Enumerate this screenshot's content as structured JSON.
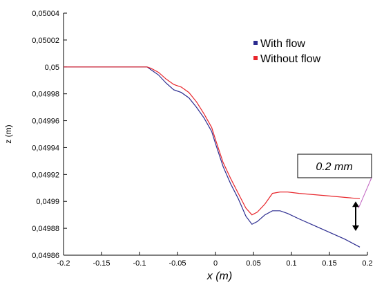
{
  "chart_data": {
    "type": "line",
    "title": "",
    "xlabel": "x (m)",
    "ylabel": "z (m)",
    "xlim": [
      -0.2,
      0.2
    ],
    "ylim": [
      0.04986,
      0.05004
    ],
    "x_ticks": [
      -0.2,
      -0.15,
      -0.1,
      -0.05,
      0,
      0.05,
      0.1,
      0.15,
      0.2
    ],
    "x_tick_labels": [
      "-0.2",
      "-0.15",
      "-0.1",
      "-0.05",
      "0",
      "0.05",
      "0.1",
      "0.15",
      "0.2"
    ],
    "y_ticks": [
      0.04986,
      0.04988,
      0.0499,
      0.04992,
      0.04994,
      0.04996,
      0.04998,
      0.05,
      0.05002,
      0.05004
    ],
    "y_tick_labels": [
      "0,04986",
      "0,04988",
      "0,0499",
      "0,04992",
      "0,04994",
      "0,04996",
      "0,04998",
      "0,05",
      "0,05002",
      "0,05004"
    ],
    "grid": false,
    "legend": "top-right",
    "series": [
      {
        "name": "With flow",
        "color": "#2b2b8f",
        "x": [
          -0.2,
          -0.09,
          -0.085,
          -0.075,
          -0.065,
          -0.055,
          -0.045,
          -0.035,
          -0.025,
          -0.015,
          -0.005,
          0.0,
          0.01,
          0.02,
          0.03,
          0.04,
          0.048,
          0.055,
          0.065,
          0.075,
          0.085,
          0.095,
          0.11,
          0.13,
          0.15,
          0.17,
          0.19
        ],
        "y": [
          0.05,
          0.05,
          0.049998,
          0.049994,
          0.049988,
          0.049983,
          0.049981,
          0.049977,
          0.04997,
          0.049962,
          0.049952,
          0.049943,
          0.049926,
          0.049913,
          0.049902,
          0.049889,
          0.049883,
          0.049885,
          0.04989,
          0.049893,
          0.049893,
          0.049891,
          0.049887,
          0.049882,
          0.049877,
          0.049872,
          0.049866
        ]
      },
      {
        "name": "Without flow",
        "color": "#e8262c",
        "x": [
          -0.2,
          -0.09,
          -0.085,
          -0.075,
          -0.065,
          -0.055,
          -0.045,
          -0.035,
          -0.025,
          -0.015,
          -0.005,
          0.0,
          0.01,
          0.02,
          0.03,
          0.04,
          0.048,
          0.055,
          0.065,
          0.075,
          0.085,
          0.095,
          0.11,
          0.13,
          0.15,
          0.17,
          0.19
        ],
        "y": [
          0.05,
          0.05,
          0.049999,
          0.049996,
          0.049991,
          0.049987,
          0.049985,
          0.049981,
          0.049974,
          0.049965,
          0.049955,
          0.049946,
          0.049929,
          0.049917,
          0.049906,
          0.049895,
          0.04989,
          0.049892,
          0.049898,
          0.049906,
          0.049907,
          0.049907,
          0.049906,
          0.049905,
          0.049904,
          0.049903,
          0.049902
        ]
      }
    ],
    "annotation": {
      "text": "0.2 mm",
      "x": 0.19,
      "y_top": 0.0499,
      "y_bottom": 0.049878
    }
  }
}
